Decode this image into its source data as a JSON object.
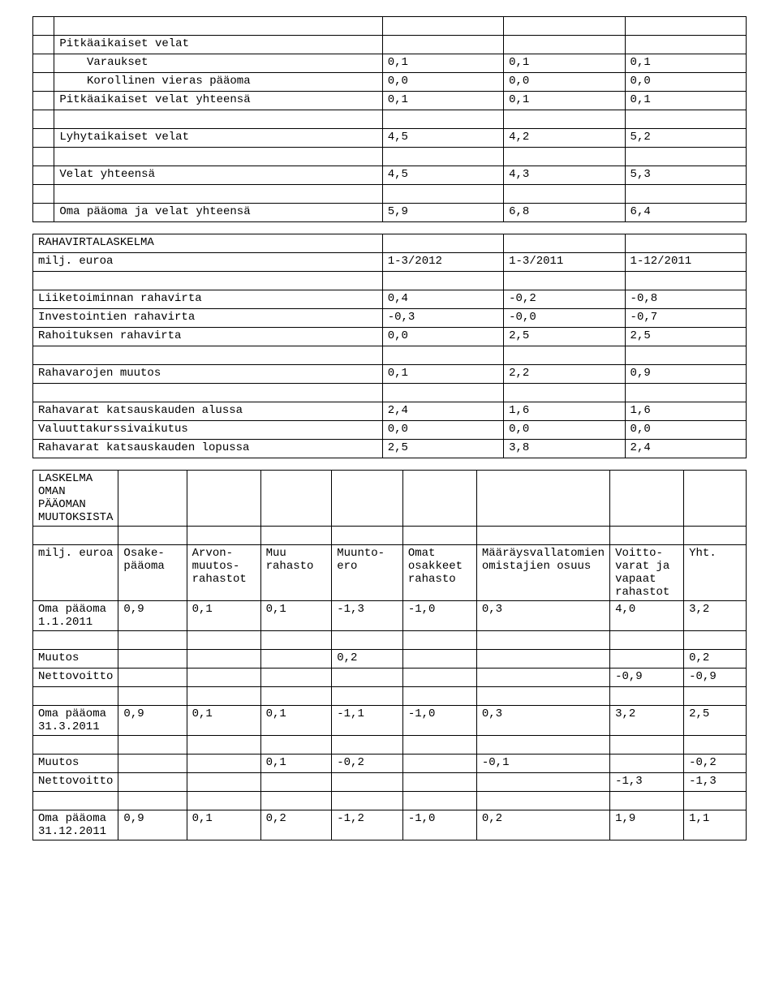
{
  "table1": {
    "rows": [
      {
        "c0": "",
        "c1": "",
        "c2": "",
        "c3": "",
        "c4": ""
      },
      {
        "c0": "",
        "c1": "Pitkäaikaiset velat",
        "c2": "",
        "c3": "",
        "c4": ""
      },
      {
        "c0": "",
        "c1": "    Varaukset",
        "c2": "0,1",
        "c3": "0,1",
        "c4": "0,1"
      },
      {
        "c0": "",
        "c1": "    Korollinen vieras pääoma",
        "c2": "0,0",
        "c3": "0,0",
        "c4": "0,0"
      },
      {
        "c0": "",
        "c1": "Pitkäaikaiset velat yhteensä",
        "c2": "0,1",
        "c3": "0,1",
        "c4": "0,1"
      },
      {
        "c0": "",
        "c1": "",
        "c2": "",
        "c3": "",
        "c4": ""
      },
      {
        "c0": "",
        "c1": "Lyhytaikaiset velat",
        "c2": "4,5",
        "c3": "4,2",
        "c4": "5,2"
      },
      {
        "c0": "",
        "c1": "",
        "c2": "",
        "c3": "",
        "c4": ""
      },
      {
        "c0": "",
        "c1": "Velat yhteensä",
        "c2": "4,5",
        "c3": "4,3",
        "c4": "5,3"
      },
      {
        "c0": "",
        "c1": "",
        "c2": "",
        "c3": "",
        "c4": ""
      },
      {
        "c0": "",
        "c1": "Oma pääoma ja velat yhteensä",
        "c2": "5,9",
        "c3": "6,8",
        "c4": "6,4"
      }
    ]
  },
  "table2": {
    "rows": [
      {
        "c0": "RAHAVIRTALASKELMA",
        "c1": "",
        "c2": "",
        "c3": ""
      },
      {
        "c0": "milj. euroa",
        "c1": "1-3/2012",
        "c2": "1-3/2011",
        "c3": "1-12/2011"
      },
      {
        "c0": "",
        "c1": "",
        "c2": "",
        "c3": ""
      },
      {
        "c0": "Liiketoiminnan rahavirta",
        "c1": "0,4",
        "c2": "-0,2",
        "c3": "-0,8"
      },
      {
        "c0": "Investointien rahavirta",
        "c1": "-0,3",
        "c2": "-0,0",
        "c3": "-0,7"
      },
      {
        "c0": "Rahoituksen rahavirta",
        "c1": "0,0",
        "c2": "2,5",
        "c3": "2,5"
      },
      {
        "c0": "",
        "c1": "",
        "c2": "",
        "c3": ""
      },
      {
        "c0": "Rahavarojen muutos",
        "c1": "0,1",
        "c2": "2,2",
        "c3": "0,9"
      },
      {
        "c0": "",
        "c1": "",
        "c2": "",
        "c3": ""
      },
      {
        "c0": "Rahavarat katsauskauden alussa",
        "c1": "2,4",
        "c2": "1,6",
        "c3": "1,6"
      },
      {
        "c0": "Valuuttakurssivaikutus",
        "c1": "0,0",
        "c2": "0,0",
        "c3": "0,0"
      },
      {
        "c0": "Rahavarat katsauskauden lopussa",
        "c1": "2,5",
        "c2": "3,8",
        "c3": "2,4"
      }
    ]
  },
  "table3": {
    "rows": [
      {
        "c0": "LASKELMA OMAN PÄÄOMAN MUUTOKSISTA",
        "c1": "",
        "c2": "",
        "c3": "",
        "c4": "",
        "c5": "",
        "c6": "",
        "c7": "",
        "c8": ""
      },
      {
        "c0": "",
        "c1": "",
        "c2": "",
        "c3": "",
        "c4": "",
        "c5": "",
        "c6": "",
        "c7": "",
        "c8": ""
      },
      {
        "c0": "milj. euroa",
        "c1": "Osake-pääoma",
        "c2": "Arvon-muutos-rahastot",
        "c3": "Muu rahasto",
        "c4": "Muunto-ero",
        "c5": "Omat osakkeet rahasto",
        "c6": "Määräysvallatomien omistajien osuus",
        "c7": "Voitto-varat ja vapaat rahastot",
        "c8": "Yht."
      },
      {
        "c0": "Oma pääoma 1.1.2011",
        "c1": "0,9",
        "c2": "0,1",
        "c3": "0,1",
        "c4": "-1,3",
        "c5": "-1,0",
        "c6": "0,3",
        "c7": "4,0",
        "c8": "3,2"
      },
      {
        "c0": "",
        "c1": "",
        "c2": "",
        "c3": "",
        "c4": "",
        "c5": "",
        "c6": "",
        "c7": "",
        "c8": ""
      },
      {
        "c0": "Muutos",
        "c1": "",
        "c2": "",
        "c3": "",
        "c4": "0,2",
        "c5": "",
        "c6": "",
        "c7": "",
        "c8": "0,2"
      },
      {
        "c0": "Nettovoitto",
        "c1": "",
        "c2": "",
        "c3": "",
        "c4": "",
        "c5": "",
        "c6": "",
        "c7": "-0,9",
        "c8": "-0,9"
      },
      {
        "c0": "",
        "c1": "",
        "c2": "",
        "c3": "",
        "c4": "",
        "c5": "",
        "c6": "",
        "c7": "",
        "c8": ""
      },
      {
        "c0": "Oma pääoma 31.3.2011",
        "c1": "0,9",
        "c2": "0,1",
        "c3": "0,1",
        "c4": "-1,1",
        "c5": "-1,0",
        "c6": "0,3",
        "c7": "3,2",
        "c8": "2,5"
      },
      {
        "c0": "",
        "c1": "",
        "c2": "",
        "c3": "",
        "c4": "",
        "c5": "",
        "c6": "",
        "c7": "",
        "c8": ""
      },
      {
        "c0": "Muutos",
        "c1": "",
        "c2": "",
        "c3": "0,1",
        "c4": "-0,2",
        "c5": "",
        "c6": "-0,1",
        "c7": "",
        "c8": "-0,2"
      },
      {
        "c0": "Nettovoitto",
        "c1": "",
        "c2": "",
        "c3": "",
        "c4": "",
        "c5": "",
        "c6": "",
        "c7": "-1,3",
        "c8": "-1,3"
      },
      {
        "c0": "",
        "c1": "",
        "c2": "",
        "c3": "",
        "c4": "",
        "c5": "",
        "c6": "",
        "c7": "",
        "c8": ""
      },
      {
        "c0": "Oma pääoma 31.12.2011",
        "c1": "0,9",
        "c2": "0,1",
        "c3": "0,2",
        "c4": "-1,2",
        "c5": "-1,0",
        "c6": "0,2",
        "c7": "1,9",
        "c8": "1,1"
      }
    ]
  }
}
